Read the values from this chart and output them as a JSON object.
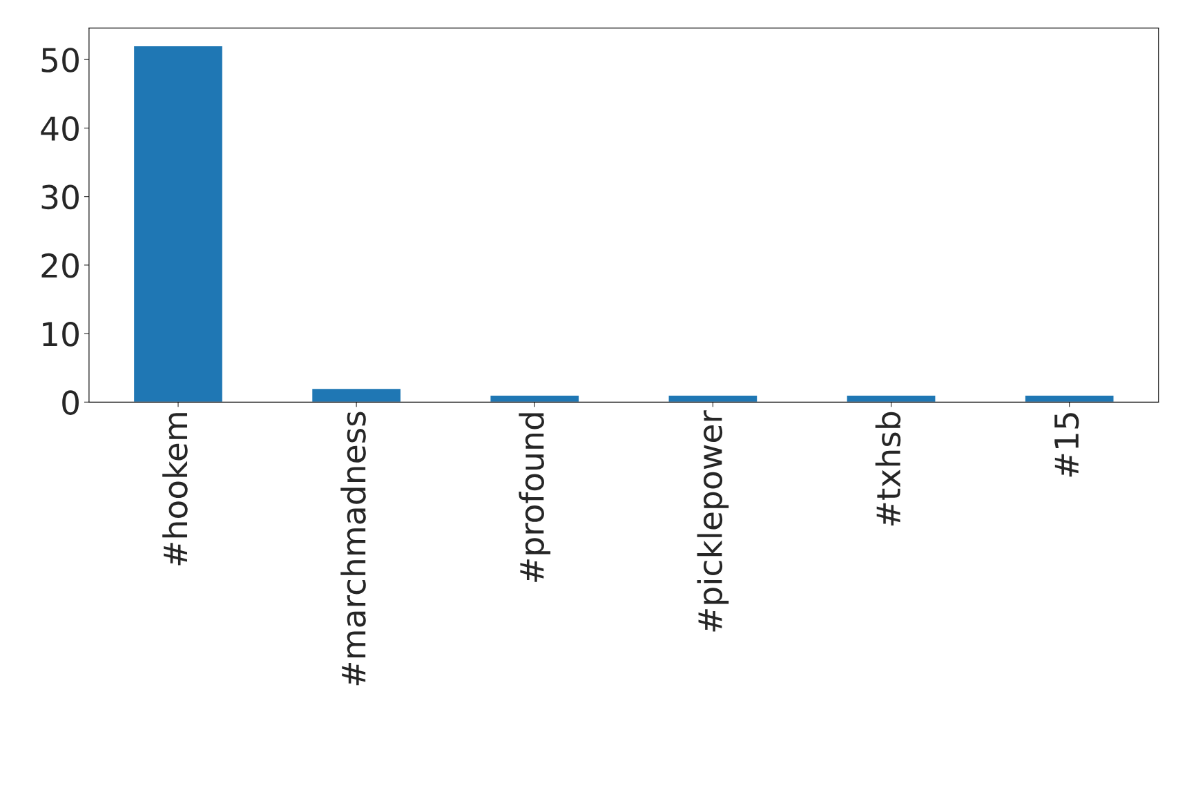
{
  "chart_data": {
    "type": "bar",
    "categories": [
      "#hookem",
      "#marchmadness",
      "#profound",
      "#picklepower",
      "#txhsb",
      "#15"
    ],
    "values": [
      52,
      2,
      1,
      1,
      1,
      1
    ],
    "color": "#1f77b4",
    "ylim": [
      0,
      54.6
    ],
    "yticks": [
      0,
      10,
      20,
      30,
      40,
      50
    ],
    "grid": false,
    "legend": false
  }
}
